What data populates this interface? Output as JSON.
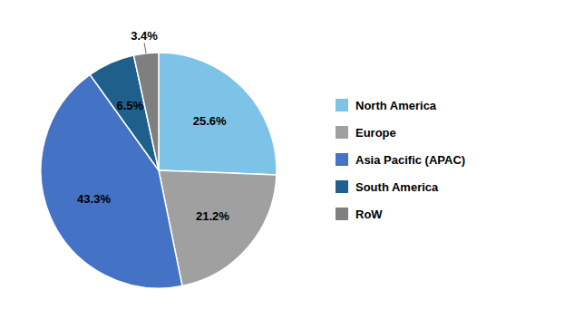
{
  "chart_data": {
    "type": "pie",
    "categories": [
      "North America",
      "Europe",
      "Asia Pacific (APAC)",
      "South America",
      "RoW"
    ],
    "values": [
      25.6,
      21.2,
      43.3,
      6.5,
      3.4
    ],
    "value_labels": [
      "25.6%",
      "21.2%",
      "43.3%",
      "6.5%",
      "3.4%"
    ],
    "colors": [
      "#7DC3E8",
      "#A0A0A0",
      "#4472C4",
      "#1F5F8B",
      "#7F7F7F"
    ],
    "data_labels": true,
    "legend": "right"
  }
}
